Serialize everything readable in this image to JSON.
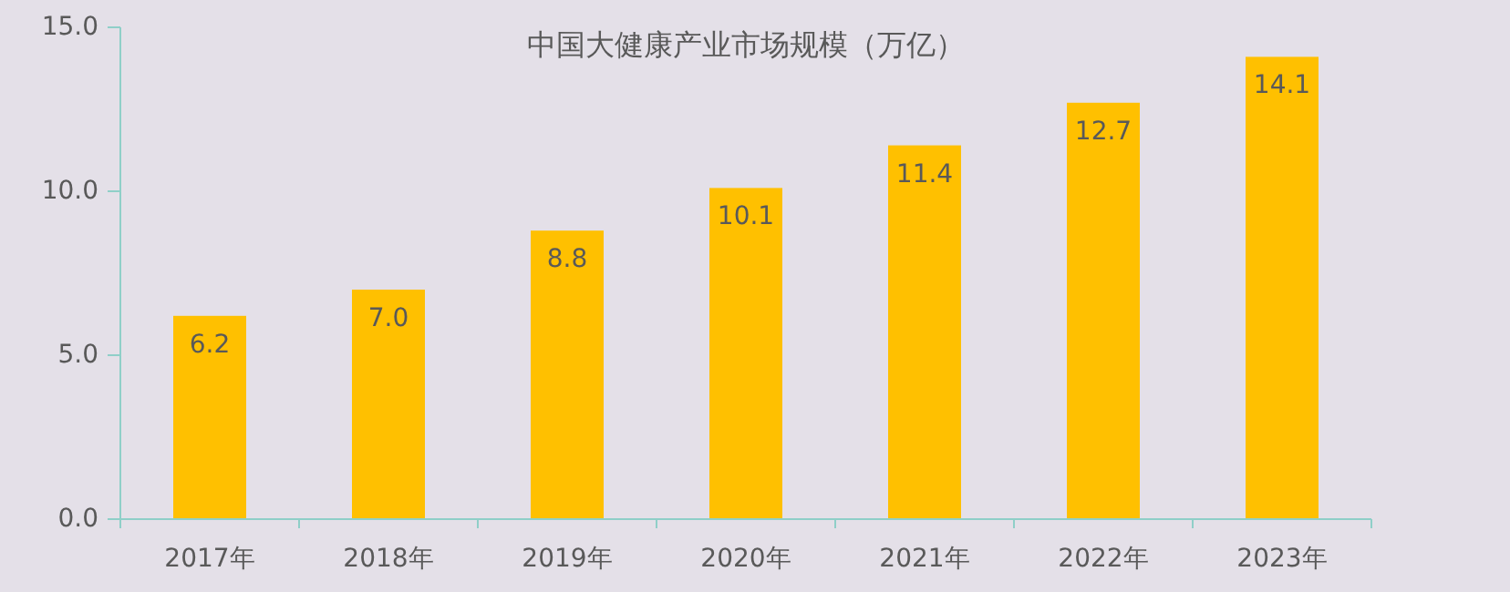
{
  "chart_data": {
    "type": "bar",
    "title": "中国大健康产业市场规模（万亿）",
    "categories": [
      "2017年",
      "2018年",
      "2019年",
      "2020年",
      "2021年",
      "2022年",
      "2023年"
    ],
    "values": [
      6.2,
      7.0,
      8.8,
      10.1,
      11.4,
      12.7,
      14.1
    ],
    "value_labels": [
      "6.2",
      "7.0",
      "8.8",
      "10.1",
      "11.4",
      "12.7",
      "14.1"
    ],
    "color": "#ffc000",
    "ylim": [
      0,
      15
    ],
    "yticks": [
      {
        "value": 0,
        "label": "0.0"
      },
      {
        "value": 5,
        "label": "5.0"
      },
      {
        "value": 10,
        "label": "10.0"
      },
      {
        "value": 15,
        "label": "15.0"
      }
    ],
    "grid": false
  }
}
